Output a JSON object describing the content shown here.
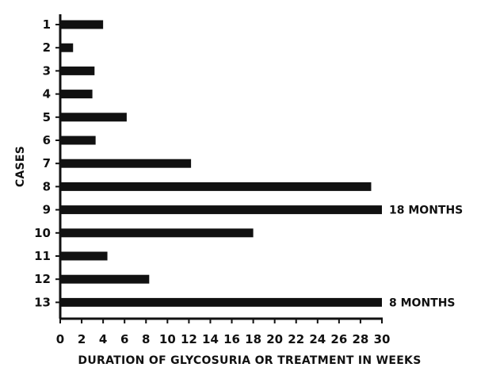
{
  "chart_data": {
    "type": "bar",
    "orientation": "horizontal",
    "title": "",
    "xlabel": "DURATION OF GLYCOSURIA OR TREATMENT IN WEEKS",
    "ylabel": "CASES",
    "xlim": [
      0,
      30
    ],
    "x_ticks": [
      0,
      2,
      4,
      6,
      8,
      10,
      12,
      14,
      16,
      18,
      20,
      22,
      24,
      26,
      28,
      30
    ],
    "x_tick_labels": [
      "0",
      "2",
      "4",
      "6",
      "8",
      "10",
      "12",
      "14",
      "16",
      "18",
      "20",
      "22",
      "24",
      "26",
      "28",
      "30"
    ],
    "categories": [
      "1",
      "2",
      "3",
      "4",
      "5",
      "6",
      "7",
      "8",
      "9",
      "10",
      "11",
      "12",
      "13"
    ],
    "values": [
      4,
      1.2,
      3.2,
      3,
      6.2,
      3.3,
      12.2,
      29,
      30,
      18,
      4.4,
      8.3,
      30
    ],
    "annotations": [
      {
        "category": "9",
        "text": "18 MONTHS"
      },
      {
        "category": "13",
        "text": "8 MONTHS"
      }
    ],
    "grid": false,
    "legend": "none",
    "bar_color": "#111111"
  }
}
